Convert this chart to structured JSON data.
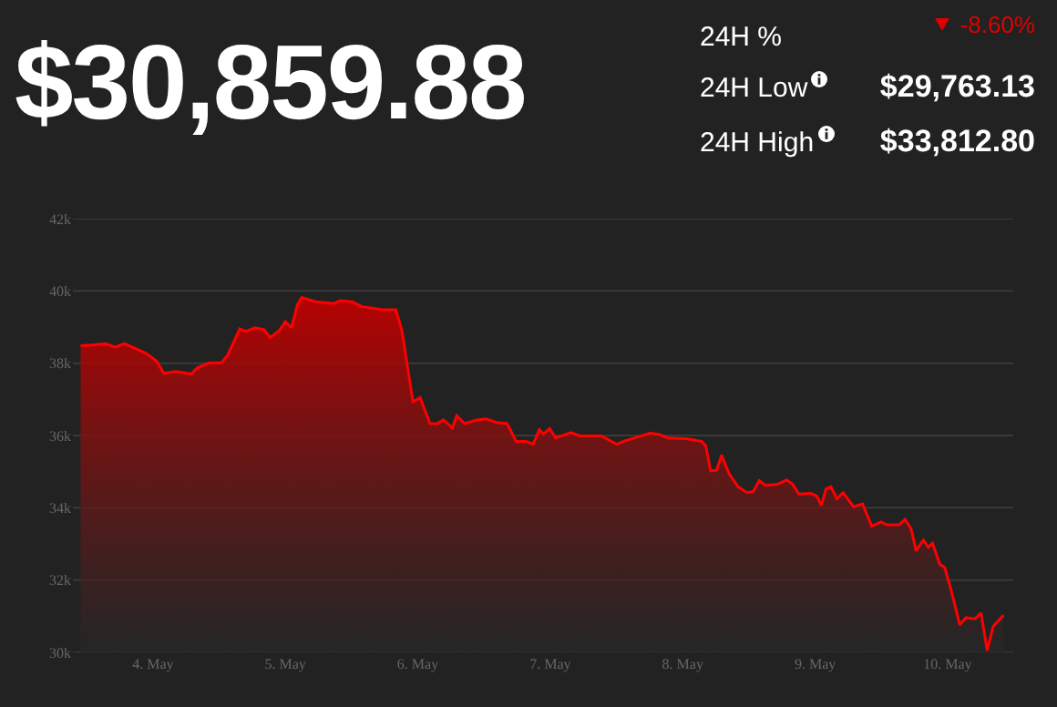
{
  "chart_data": {
    "type": "area",
    "title": "$30,859.88",
    "annotations": [
      "24H %",
      "-8.60%",
      "24H Low",
      "$29,763.13",
      "24H High",
      "$33,812.80"
    ],
    "x": [
      "--05-03T10:54",
      "--05-03T13:19",
      "--05-03T15:31",
      "--05-03T17:10",
      "--05-03T18:50",
      "--05-03T21:02",
      "--05-03T22:41",
      "--05-04T00:40",
      "--05-04T01:59",
      "--05-04T04:11",
      "--05-04T06:56",
      "--05-04T08:02",
      "--05-04T10:14",
      "--05-04T12:26",
      "--05-04T13:32",
      "--05-04T15:45",
      "--05-04T16:51",
      "--05-04T18:30",
      "--05-04T20:09",
      "--05-04T21:15",
      "--05-04T22:54",
      "--05-05T00:00",
      "--05-05T01:06",
      "--05-05T02:12",
      "--05-05T02:58",
      "--05-05T05:31",
      "--05-05T08:49",
      "--05-05T09:55",
      "--05-05T12:07",
      "--05-05T13:46",
      "--05-05T15:58",
      "--05-05T17:37",
      "--05-05T20:02",
      "--05-05T21:08",
      "--05-05T23:07",
      "--05-06T00:26",
      "--05-06T02:13",
      "--05-06T03:32",
      "--05-06T04:38",
      "--05-06T06:17",
      "--05-06T07:03",
      "--05-06T08:29",
      "--05-06T10:41",
      "--05-06T12:20",
      "--05-06T14:19",
      "--05-06T16:11",
      "--05-06T17:50",
      "--05-06T19:29",
      "--05-06T20:55",
      "--05-06T22:01",
      "--05-06T22:47",
      "--05-06T23:54",
      "--05-07T01:00",
      "--05-07T03:45",
      "--05-07T05:24",
      "--05-07T09:15",
      "--05-07T12:01",
      "--05-07T13:40",
      "--05-07T14:46",
      "--05-07T18:04",
      "--05-07T19:43",
      "--05-07T21:22",
      "--05-08T00:40",
      "--05-08T03:25",
      "--05-08T04:11",
      "--05-08T05:04",
      "--05-08T06:10",
      "--05-08T07:03",
      "--05-08T08:22",
      "--05-08T10:02",
      "--05-08T11:41",
      "--05-08T12:47",
      "--05-08T13:53",
      "--05-08T14:59",
      "--05-08T17:11",
      "--05-08T18:50",
      "--05-08T19:56",
      "--05-08T21:02",
      "--05-08T23:14",
      "--05-09T00:20",
      "--05-09T01:07",
      "--05-09T01:59",
      "--05-09T02:52",
      "--05-09T03:58",
      "--05-09T05:04",
      "--05-09T06:57",
      "--05-09T08:36",
      "--05-09T10:15",
      "--05-09T11:54",
      "--05-09T13:00",
      "--05-09T15:13",
      "--05-09T16:19",
      "--05-09T17:25",
      "--05-09T18:17",
      "--05-09T19:37",
      "--05-09T20:29",
      "--05-09T21:16",
      "--05-09T22:35",
      "--05-09T23:28",
      "--05-10T00:34",
      "--05-10T02:13",
      "--05-10T03:19",
      "--05-10T04:58",
      "--05-10T06:04",
      "--05-10T07:10",
      "--05-10T08:16",
      "--05-10T10:08"
    ],
    "series": [
      {
        "color": "#ff0000",
        "values": [
          38480,
          38510,
          38540,
          38440,
          38540,
          38390,
          38280,
          38060,
          37720,
          37770,
          37700,
          37870,
          38010,
          38010,
          38220,
          38950,
          38880,
          38980,
          38930,
          38710,
          38900,
          39150,
          38980,
          39620,
          39820,
          39700,
          39650,
          39730,
          39700,
          39570,
          39520,
          39480,
          39480,
          38900,
          36930,
          37050,
          36330,
          36330,
          36430,
          36210,
          36550,
          36330,
          36430,
          36460,
          36360,
          36330,
          35830,
          35840,
          35760,
          36160,
          36040,
          36190,
          35930,
          36080,
          35990,
          35990,
          35760,
          35860,
          35910,
          36060,
          36030,
          35930,
          35910,
          35840,
          35710,
          35020,
          35040,
          35460,
          34950,
          34580,
          34420,
          34450,
          34750,
          34620,
          34650,
          34770,
          34650,
          34380,
          34400,
          34320,
          34060,
          34520,
          34580,
          34250,
          34420,
          34030,
          34110,
          33490,
          33610,
          33530,
          33530,
          33680,
          33410,
          32810,
          33110,
          32910,
          33020,
          32440,
          32350,
          31770,
          30760,
          30960,
          30930,
          31090,
          30050,
          30720,
          31030
        ]
      }
    ],
    "xlim": [
      "--05-03T09:30",
      "--05-10T11:54"
    ],
    "xticks": [
      {
        "value": "--05-04",
        "label": "4. May"
      },
      {
        "value": "--05-05",
        "label": "5. May"
      },
      {
        "value": "--05-06",
        "label": "6. May"
      },
      {
        "value": "--05-07",
        "label": "7. May"
      },
      {
        "value": "--05-08",
        "label": "8. May"
      },
      {
        "value": "--05-09",
        "label": "9. May"
      },
      {
        "value": "--05-10",
        "label": "10. May"
      }
    ],
    "ylim": [
      30000,
      42000
    ],
    "yticks": [
      {
        "value": 30000,
        "label": "30k"
      },
      {
        "value": 32000,
        "label": "32k"
      },
      {
        "value": 34000,
        "label": "34k"
      },
      {
        "value": 36000,
        "label": "36k"
      },
      {
        "value": 38000,
        "label": "38k"
      },
      {
        "value": 40000,
        "label": "40k"
      },
      {
        "value": 42000,
        "label": "42k"
      }
    ],
    "grid": "y"
  }
}
